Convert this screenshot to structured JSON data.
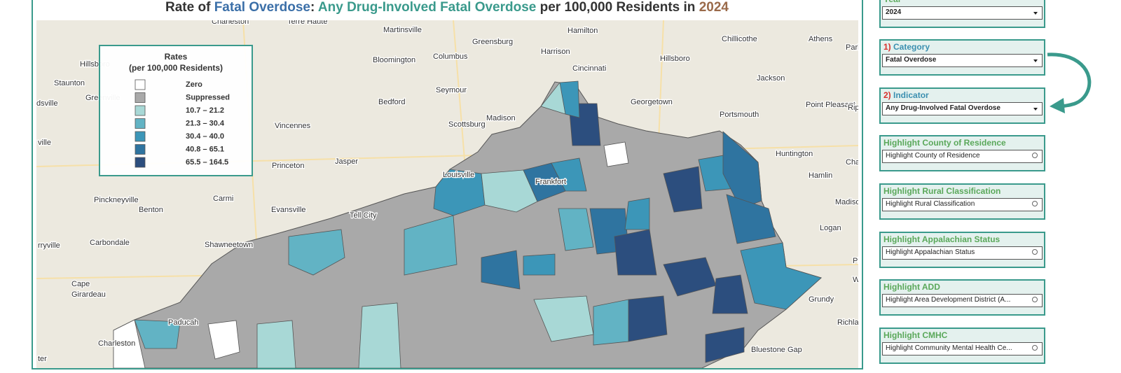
{
  "title": {
    "parts": [
      {
        "text": "Rate of ",
        "color": "#333333"
      },
      {
        "text": "Fatal Overdose",
        "color": "#3b6fa8"
      },
      {
        "text": ": ",
        "color": "#333333"
      },
      {
        "text": "Any Drug-Involved Fatal Overdose",
        "color": "#3a9a8c"
      },
      {
        "text": " per 100,000 Residents in ",
        "color": "#333333"
      },
      {
        "text": "2024",
        "color": "#9a6a4a"
      }
    ]
  },
  "legend": {
    "title": "Rates",
    "subtitle": "(per 100,000 Residents)",
    "items": [
      {
        "label": "Zero",
        "color": "#ffffff"
      },
      {
        "label": "Suppressed",
        "color": "#a9a9a9"
      },
      {
        "label": "10.7 – 21.2",
        "color": "#a8d8d6"
      },
      {
        "label": "21.3 – 30.4",
        "color": "#62b3c4"
      },
      {
        "label": "30.4 – 40.0",
        "color": "#3c96b8"
      },
      {
        "label": "40.8 – 65.1",
        "color": "#2f74a0"
      },
      {
        "label": "65.5 – 164.5",
        "color": "#2c4e7e"
      }
    ]
  },
  "map": {
    "labels": [
      "Charleston",
      "Terre Haute",
      "Martinsville",
      "Hamilton",
      "Chillicothe",
      "Athens",
      "Parke",
      "Greensburg",
      "Harrison",
      "Hillsboro",
      "Bloomington",
      "Columbus",
      "Cincinnati",
      "Hillsboro",
      "Staunton",
      "Seymour",
      "Jackson",
      "Greenville",
      "Bedford",
      "Georgetown",
      "Point Pleasant",
      "Ripley",
      "Madison",
      "Scottsburg",
      "Portsmouth",
      "Vincennes",
      "Jasper",
      "Princeton",
      "Louisville",
      "Frankfort",
      "Huntington",
      "Charle",
      "Hamlin",
      "Pinckneyville",
      "Carmi",
      "Benton",
      "Evansville",
      "Tell City",
      "Madison",
      "Logan",
      "Carbondale",
      "Shawneetown",
      "Cape",
      "Girardeau",
      "Paducah",
      "Charleston",
      "Richlands",
      "Grundy",
      "Bluestone Gap",
      "dsville",
      "ville",
      "rryville",
      "ter",
      "Pir",
      "We"
    ]
  },
  "filters": [
    {
      "label": "Year",
      "value": "2024",
      "kind": "dropdown"
    },
    {
      "step": "1)",
      "label": "Category",
      "value": "Fatal Overdose",
      "kind": "dropdown"
    },
    {
      "step": "2)",
      "label": "Indicator",
      "value": "Any Drug-Involved Fatal Overdose",
      "kind": "dropdown"
    },
    {
      "label": "Highlight County of Residence",
      "value": "Highlight County of Residence",
      "kind": "search"
    },
    {
      "label": "Highlight Rural Classification",
      "value": "Highlight Rural Classification",
      "kind": "search"
    },
    {
      "label": "Highlight Appalachian Status",
      "value": "Highlight Appalachian Status",
      "kind": "search"
    },
    {
      "label": "Highlight ADD",
      "value": "Highlight Area Development District (A...",
      "kind": "search"
    },
    {
      "label": "Highlight CMHC",
      "value": "Highlight Community Mental Health Ce...",
      "kind": "search"
    }
  ]
}
